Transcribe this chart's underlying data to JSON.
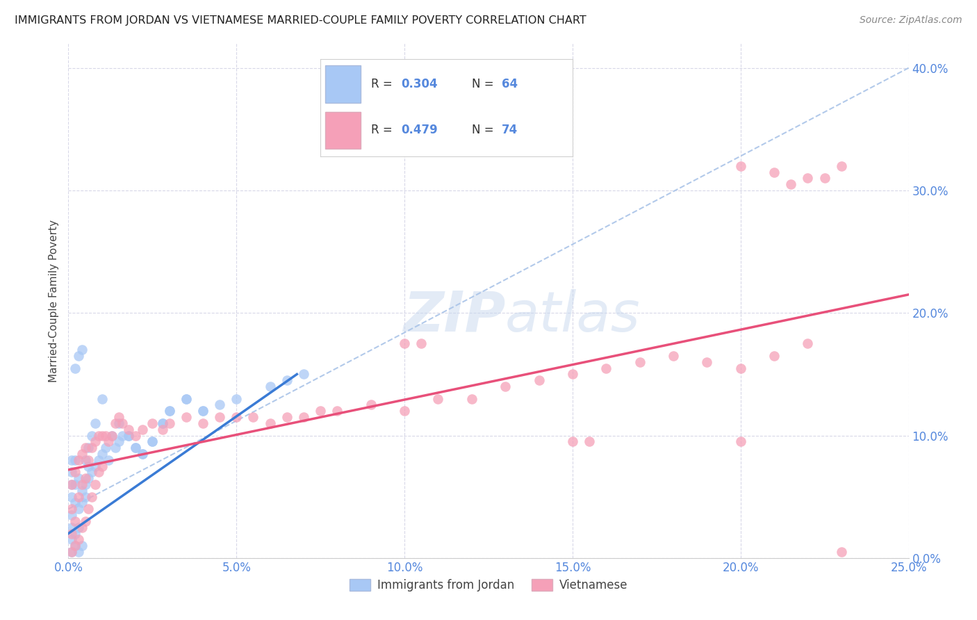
{
  "title": "IMMIGRANTS FROM JORDAN VS VIETNAMESE MARRIED-COUPLE FAMILY POVERTY CORRELATION CHART",
  "source": "Source: ZipAtlas.com",
  "ylabel_label": "Married-Couple Family Poverty",
  "xmax": 0.25,
  "ymax": 0.42,
  "jordan_color": "#a8c8f5",
  "vietnamese_color": "#f5a0b8",
  "jordan_line_color": "#3a7bd5",
  "vietnamese_line_color": "#e8507a",
  "diag_color": "#aac4e8",
  "jordan_R": 0.304,
  "jordan_N": 64,
  "vietnamese_R": 0.479,
  "vietnamese_N": 74,
  "legend_jordan_label": "Immigrants from Jordan",
  "legend_vietnamese_label": "Vietnamese",
  "watermark_zip": "ZIP",
  "watermark_atlas": "atlas",
  "background_color": "#ffffff",
  "grid_color": "#d8d8e8",
  "axis_color": "#5588dd",
  "title_color": "#222222",
  "source_color": "#888888",
  "ylabel_color": "#444444",
  "jordan_scatter_x": [
    0.002,
    0.003,
    0.004,
    0.005,
    0.006,
    0.007,
    0.008,
    0.01,
    0.012,
    0.014,
    0.015,
    0.016,
    0.018,
    0.02,
    0.022,
    0.025,
    0.028,
    0.03,
    0.035,
    0.04,
    0.001,
    0.001,
    0.001,
    0.001,
    0.001,
    0.001,
    0.001,
    0.001,
    0.002,
    0.002,
    0.002,
    0.002,
    0.002,
    0.003,
    0.003,
    0.003,
    0.003,
    0.004,
    0.004,
    0.004,
    0.005,
    0.005,
    0.006,
    0.006,
    0.007,
    0.008,
    0.009,
    0.01,
    0.011,
    0.013,
    0.015,
    0.018,
    0.02,
    0.022,
    0.025,
    0.028,
    0.03,
    0.035,
    0.04,
    0.045,
    0.05,
    0.06,
    0.065,
    0.07
  ],
  "jordan_scatter_y": [
    0.155,
    0.165,
    0.17,
    0.08,
    0.09,
    0.1,
    0.11,
    0.13,
    0.08,
    0.09,
    0.095,
    0.1,
    0.1,
    0.09,
    0.085,
    0.095,
    0.11,
    0.12,
    0.13,
    0.12,
    0.005,
    0.015,
    0.025,
    0.035,
    0.05,
    0.06,
    0.07,
    0.08,
    0.01,
    0.02,
    0.045,
    0.06,
    0.08,
    0.005,
    0.025,
    0.04,
    0.065,
    0.01,
    0.045,
    0.055,
    0.05,
    0.06,
    0.065,
    0.075,
    0.07,
    0.075,
    0.08,
    0.085,
    0.09,
    0.1,
    0.11,
    0.1,
    0.09,
    0.085,
    0.095,
    0.11,
    0.12,
    0.13,
    0.12,
    0.125,
    0.13,
    0.14,
    0.145,
    0.15
  ],
  "vietnamese_scatter_x": [
    0.001,
    0.001,
    0.001,
    0.001,
    0.002,
    0.002,
    0.002,
    0.003,
    0.003,
    0.003,
    0.004,
    0.004,
    0.004,
    0.005,
    0.005,
    0.005,
    0.006,
    0.006,
    0.007,
    0.007,
    0.008,
    0.008,
    0.009,
    0.009,
    0.01,
    0.01,
    0.011,
    0.012,
    0.013,
    0.014,
    0.015,
    0.016,
    0.018,
    0.02,
    0.022,
    0.025,
    0.028,
    0.03,
    0.035,
    0.04,
    0.045,
    0.05,
    0.055,
    0.06,
    0.065,
    0.07,
    0.075,
    0.08,
    0.09,
    0.1,
    0.11,
    0.12,
    0.13,
    0.14,
    0.15,
    0.16,
    0.17,
    0.18,
    0.19,
    0.2,
    0.21,
    0.22,
    0.225,
    0.23,
    0.2,
    0.21,
    0.215,
    0.22,
    0.15,
    0.155,
    0.1,
    0.105,
    0.2,
    0.23
  ],
  "vietnamese_scatter_y": [
    0.005,
    0.02,
    0.04,
    0.06,
    0.01,
    0.03,
    0.07,
    0.015,
    0.05,
    0.08,
    0.025,
    0.06,
    0.085,
    0.03,
    0.065,
    0.09,
    0.04,
    0.08,
    0.05,
    0.09,
    0.06,
    0.095,
    0.07,
    0.1,
    0.075,
    0.1,
    0.1,
    0.095,
    0.1,
    0.11,
    0.115,
    0.11,
    0.105,
    0.1,
    0.105,
    0.11,
    0.105,
    0.11,
    0.115,
    0.11,
    0.115,
    0.115,
    0.115,
    0.11,
    0.115,
    0.115,
    0.12,
    0.12,
    0.125,
    0.12,
    0.13,
    0.13,
    0.14,
    0.145,
    0.15,
    0.155,
    0.16,
    0.165,
    0.16,
    0.155,
    0.165,
    0.175,
    0.31,
    0.32,
    0.32,
    0.315,
    0.305,
    0.31,
    0.095,
    0.095,
    0.175,
    0.175,
    0.095,
    0.005
  ]
}
